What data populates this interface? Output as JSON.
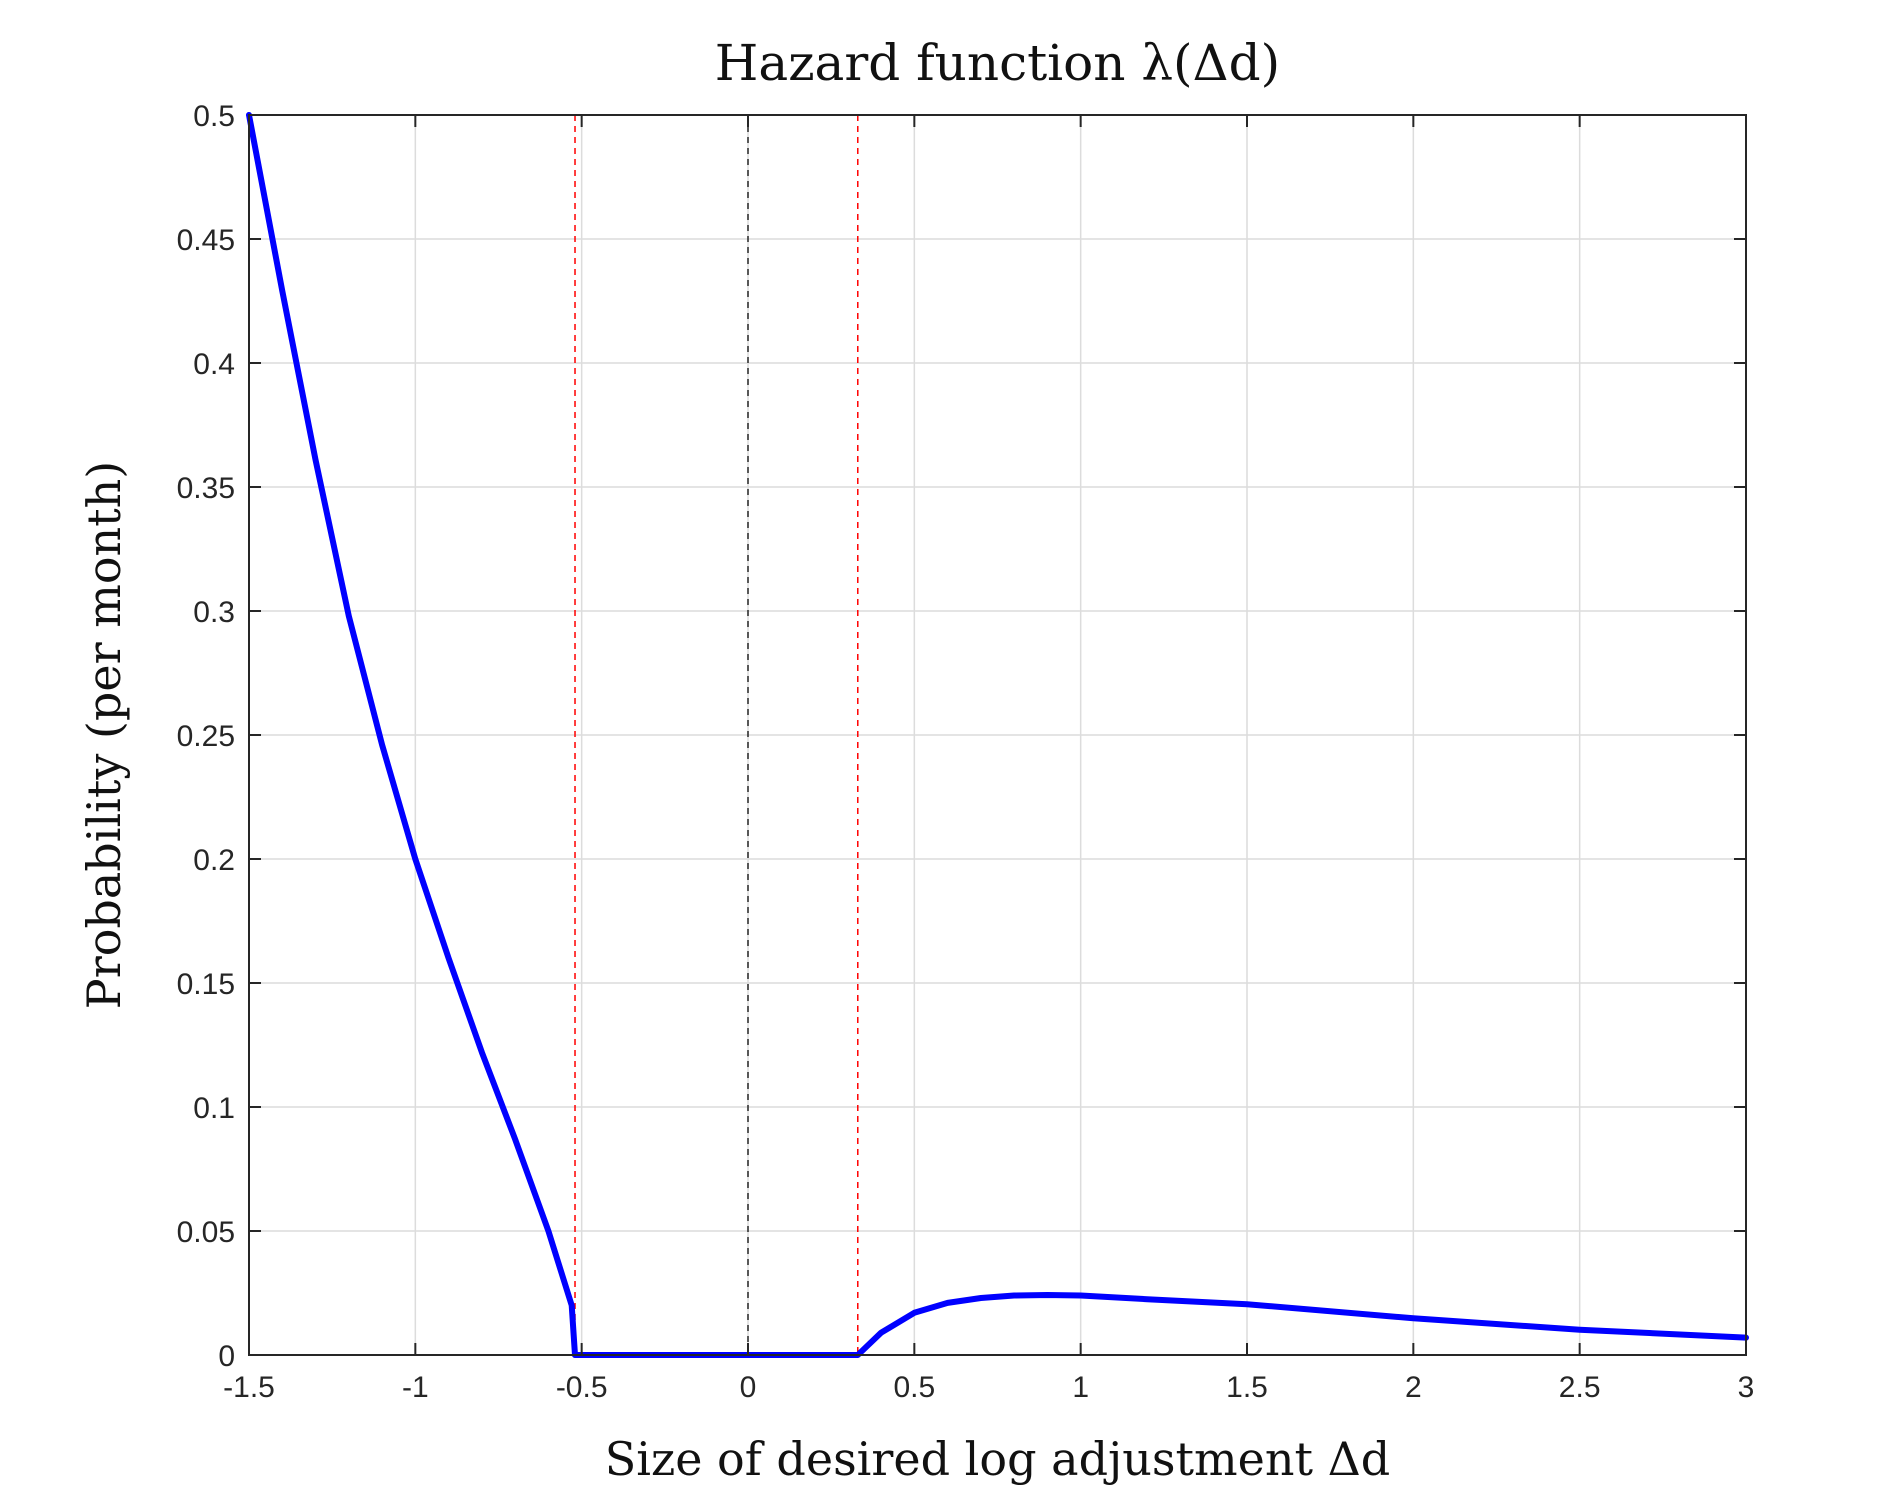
{
  "chart_data": {
    "type": "line",
    "title": "Hazard function λ(Δd)",
    "xlabel": "Size of desired log adjustment Δd",
    "ylabel": "Probability (per month)",
    "xlim": [
      -1.5,
      3
    ],
    "ylim": [
      0,
      0.5
    ],
    "x_ticks": [
      -1.5,
      -1,
      -0.5,
      0,
      0.5,
      1,
      1.5,
      2,
      2.5,
      3
    ],
    "x_tick_labels": [
      "-1.5",
      "-1",
      "-0.5",
      "0",
      "0.5",
      "1",
      "1.5",
      "2",
      "2.5",
      "3"
    ],
    "y_ticks": [
      0,
      0.05,
      0.1,
      0.15,
      0.2,
      0.25,
      0.3,
      0.35,
      0.4,
      0.45,
      0.5
    ],
    "y_tick_labels": [
      "0",
      "0.05",
      "0.1",
      "0.15",
      "0.2",
      "0.25",
      "0.3",
      "0.35",
      "0.4",
      "0.45",
      "0.5"
    ],
    "grid": true,
    "series": [
      {
        "color": "#0000ff",
        "x": [
          -1.5,
          -1.4,
          -1.3,
          -1.2,
          -1.1,
          -1.0,
          -0.9,
          -0.8,
          -0.7,
          -0.6,
          -0.53,
          -0.52,
          -0.3,
          0,
          0.3,
          0.33,
          0.4,
          0.5,
          0.6,
          0.7,
          0.8,
          0.9,
          1.0,
          1.2,
          1.5,
          2.0,
          2.5,
          3.0
        ],
        "y": [
          0.5,
          0.429,
          0.361,
          0.298,
          0.246,
          0.2,
          0.16,
          0.122,
          0.087,
          0.05,
          0.02,
          0,
          0,
          0,
          0,
          0.0,
          0.009,
          0.017,
          0.021,
          0.023,
          0.024,
          0.0242,
          0.024,
          0.0225,
          0.0205,
          0.0148,
          0.0102,
          0.007
        ]
      }
    ],
    "vertical_lines": [
      {
        "x": -0.52,
        "color": "#ff0000",
        "style": "dashed"
      },
      {
        "x": 0,
        "color": "#262626",
        "style": "dashed"
      },
      {
        "x": 0.33,
        "color": "#ff0000",
        "style": "dashed"
      }
    ]
  }
}
